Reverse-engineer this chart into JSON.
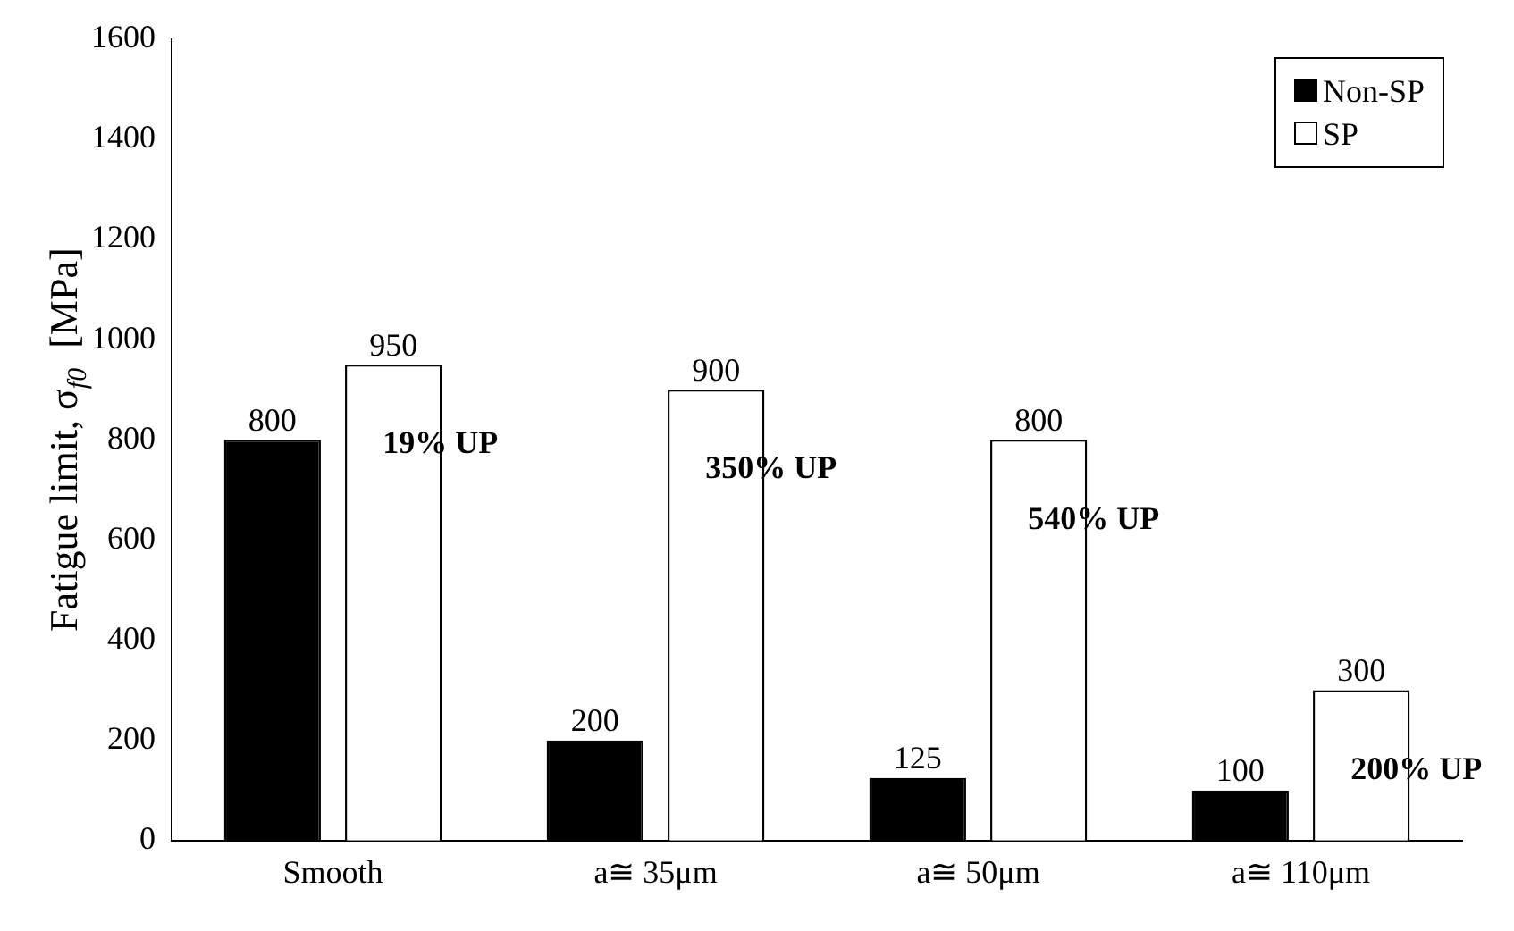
{
  "chart_data": {
    "type": "bar",
    "ylabel": "Fatigue limit, σ$_{f0}$  [MPa]",
    "categories": [
      "Smooth",
      "a≅ 35μm",
      "a≅ 50μm",
      "a≅ 110μm"
    ],
    "series": [
      {
        "name": "Non-SP",
        "color": "#000000",
        "values": [
          800,
          200,
          125,
          100
        ]
      },
      {
        "name": "SP",
        "color": "#ffffff",
        "values": [
          950,
          900,
          800,
          300
        ]
      }
    ],
    "ylim": [
      0,
      1600
    ],
    "yticks": [
      0,
      200,
      400,
      600,
      800,
      1000,
      1200,
      1400,
      1600
    ],
    "grid": false,
    "legend": "top right",
    "data_labels": true,
    "annotations": [
      "19% UP",
      "350% UP",
      "540% UP",
      "200% UP"
    ]
  }
}
